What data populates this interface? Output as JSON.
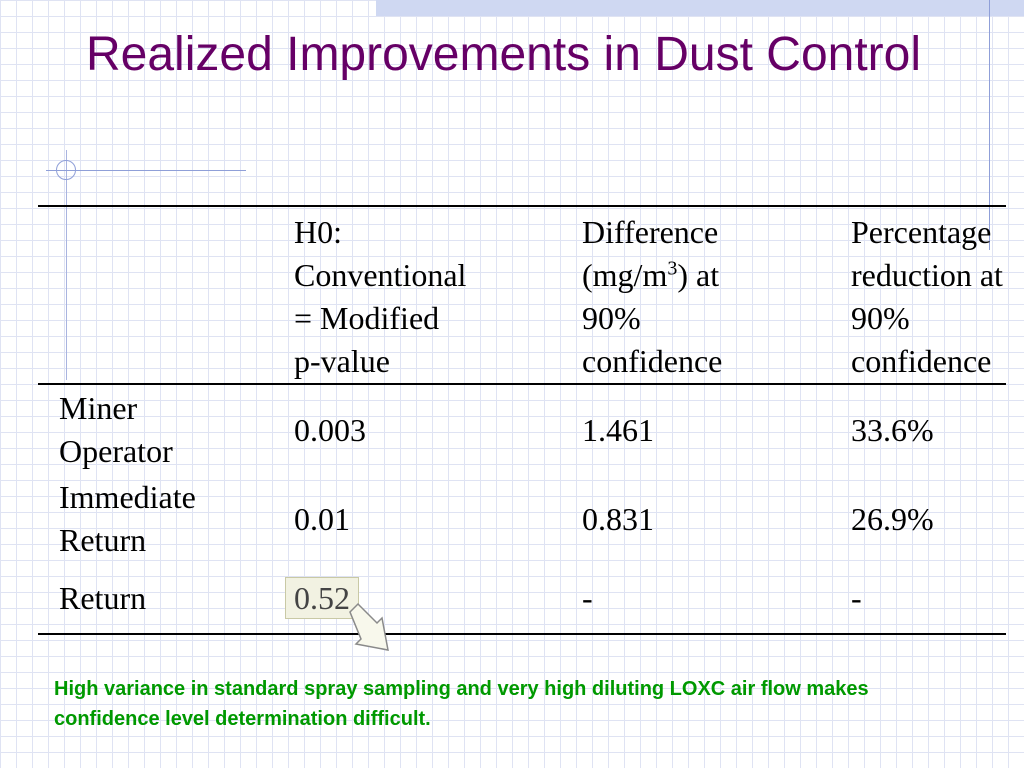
{
  "slide": {
    "title": "Realized Improvements in Dust Control",
    "note": "High variance in standard spray sampling and very high diluting LOXC air flow makes confidence level determination difficult."
  },
  "table": {
    "header": {
      "col2_lines": [
        "H0:",
        "Conventional",
        "= Modified",
        "p-value"
      ],
      "col3_line1": "Difference",
      "col3_line2_pre": "(mg/m",
      "col3_sup": "3",
      "col3_line2_post": ") at",
      "col3_line3": "90%",
      "col3_line4": "confidence",
      "col4_lines": [
        "Percentage",
        "reduction at",
        "90%",
        "confidence"
      ]
    },
    "rows": [
      {
        "label_lines": [
          "Miner",
          "Operator"
        ],
        "p_value": "0.003",
        "difference": "1.461",
        "percentage": "33.6%"
      },
      {
        "label_lines": [
          "Immediate",
          "Return"
        ],
        "p_value": "0.01",
        "difference": "0.831",
        "percentage": "26.9%"
      },
      {
        "label_lines": [
          "Return"
        ],
        "p_value": "0.52",
        "difference": "-",
        "percentage": "-"
      }
    ]
  },
  "colors": {
    "title": "#660066",
    "note": "#009900",
    "highlight_fill": "#f2f2e2",
    "grid": "#dfe3f3"
  }
}
